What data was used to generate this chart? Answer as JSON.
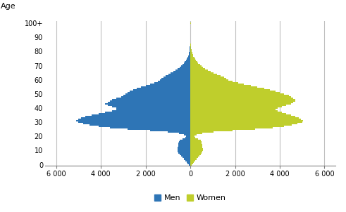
{
  "ylabel": "Age",
  "xlim": [
    -6500,
    6500
  ],
  "ylim": [
    -0.5,
    101.5
  ],
  "yticks": [
    0,
    10,
    20,
    30,
    40,
    50,
    60,
    70,
    80,
    90,
    100
  ],
  "ytick_labels": [
    "0",
    "10",
    "20",
    "30",
    "40",
    "50",
    "60",
    "70",
    "80",
    "90",
    "100+"
  ],
  "xticks": [
    -6000,
    -4000,
    -2000,
    0,
    2000,
    4000,
    6000
  ],
  "xtick_labels": [
    "6 000",
    "4 000",
    "2 000",
    "0",
    "2 000",
    "4 000",
    "6 000"
  ],
  "men_color": "#2E75B6",
  "women_color": "#BFCE2C",
  "grid_color": "#C0C0C0",
  "legend_men": "Men",
  "legend_women": "Women",
  "men_values": [
    80,
    120,
    160,
    220,
    290,
    360,
    420,
    480,
    530,
    560,
    570,
    570,
    560,
    550,
    540,
    530,
    520,
    490,
    350,
    220,
    200,
    280,
    500,
    1000,
    1800,
    2800,
    3600,
    4100,
    4500,
    4800,
    5000,
    5100,
    5000,
    4900,
    4700,
    4400,
    4100,
    3800,
    3500,
    3300,
    3300,
    3500,
    3700,
    3800,
    3700,
    3600,
    3500,
    3300,
    3100,
    3000,
    2900,
    2800,
    2700,
    2550,
    2400,
    2200,
    2000,
    1800,
    1600,
    1450,
    1350,
    1280,
    1200,
    1100,
    990,
    880,
    770,
    660,
    570,
    490,
    420,
    360,
    300,
    250,
    205,
    168,
    135,
    105,
    80,
    60,
    45,
    35,
    26,
    19,
    14,
    10,
    7,
    4,
    3,
    2,
    1,
    1,
    0,
    0,
    0,
    0,
    0,
    0,
    0,
    0,
    10
  ],
  "women_values": [
    75,
    115,
    155,
    210,
    275,
    345,
    405,
    460,
    510,
    545,
    555,
    555,
    545,
    535,
    525,
    515,
    505,
    475,
    340,
    215,
    200,
    290,
    530,
    1050,
    1900,
    2900,
    3700,
    4200,
    4550,
    4800,
    5000,
    5050,
    4950,
    4850,
    4700,
    4500,
    4300,
    4100,
    3900,
    3800,
    3900,
    4100,
    4300,
    4500,
    4600,
    4700,
    4700,
    4600,
    4500,
    4400,
    4200,
    4000,
    3800,
    3550,
    3300,
    3000,
    2700,
    2400,
    2150,
    1900,
    1700,
    1600,
    1500,
    1350,
    1200,
    1050,
    910,
    780,
    670,
    580,
    500,
    430,
    360,
    305,
    255,
    210,
    172,
    140,
    112,
    88,
    68,
    52,
    40,
    30,
    22,
    16,
    11,
    7,
    5,
    3,
    2,
    1,
    1,
    0,
    0,
    0,
    0,
    0,
    0,
    0,
    40
  ]
}
